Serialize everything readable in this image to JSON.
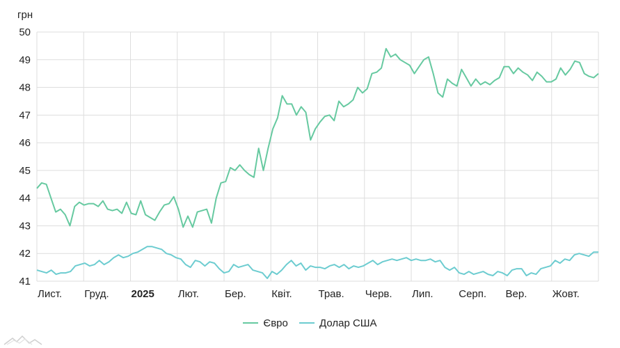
{
  "chart_data": {
    "type": "line",
    "unit_label": "грн",
    "ylim": [
      41,
      50
    ],
    "y_ticks": [
      41,
      42,
      43,
      44,
      45,
      46,
      47,
      48,
      49,
      50
    ],
    "x_labels": [
      {
        "label": "Лист.",
        "bold": false
      },
      {
        "label": "Груд.",
        "bold": false
      },
      {
        "label": "2025",
        "bold": true
      },
      {
        "label": "Лют.",
        "bold": false
      },
      {
        "label": "Бер.",
        "bold": false
      },
      {
        "label": "Квіт.",
        "bold": false
      },
      {
        "label": "Трав.",
        "bold": false
      },
      {
        "label": "Черв.",
        "bold": false
      },
      {
        "label": "Лип.",
        "bold": false
      },
      {
        "label": "Серп.",
        "bold": false
      },
      {
        "label": "Вер.",
        "bold": false
      },
      {
        "label": "Жовт.",
        "bold": false
      }
    ],
    "grid": true,
    "legend_position": "bottom-center",
    "series": [
      {
        "name": "Євро",
        "color": "#66c9a0",
        "values": [
          44.35,
          44.55,
          44.5,
          44.0,
          43.5,
          43.6,
          43.4,
          43.0,
          43.7,
          43.85,
          43.75,
          43.8,
          43.8,
          43.7,
          43.9,
          43.6,
          43.55,
          43.6,
          43.45,
          43.85,
          43.45,
          43.4,
          43.9,
          43.4,
          43.3,
          43.2,
          43.5,
          43.75,
          43.8,
          44.05,
          43.6,
          42.95,
          43.35,
          42.95,
          43.5,
          43.55,
          43.6,
          43.1,
          44.0,
          44.55,
          44.6,
          45.1,
          45.0,
          45.2,
          45.0,
          44.85,
          44.75,
          45.8,
          45.0,
          45.8,
          46.5,
          46.9,
          47.7,
          47.4,
          47.4,
          47.0,
          47.3,
          47.1,
          46.1,
          46.5,
          46.75,
          46.95,
          47.0,
          46.8,
          47.5,
          47.3,
          47.4,
          47.55,
          48.0,
          47.8,
          47.95,
          48.5,
          48.55,
          48.7,
          49.4,
          49.1,
          49.2,
          49.0,
          48.9,
          48.8,
          48.5,
          48.75,
          49.0,
          49.1,
          48.5,
          47.8,
          47.65,
          48.3,
          48.15,
          48.05,
          48.65,
          48.35,
          48.05,
          48.3,
          48.1,
          48.2,
          48.1,
          48.25,
          48.35,
          48.75,
          48.75,
          48.5,
          48.7,
          48.55,
          48.45,
          48.25,
          48.55,
          48.4,
          48.2,
          48.2,
          48.3,
          48.7,
          48.45,
          48.65,
          48.95,
          48.9,
          48.5,
          48.4,
          48.35,
          48.5
        ]
      },
      {
        "name": "Долар США",
        "color": "#6cccd0",
        "values": [
          41.4,
          41.35,
          41.3,
          41.4,
          41.25,
          41.3,
          41.3,
          41.35,
          41.55,
          41.6,
          41.65,
          41.55,
          41.6,
          41.75,
          41.6,
          41.7,
          41.85,
          41.95,
          41.85,
          41.9,
          42.0,
          42.05,
          42.15,
          42.25,
          42.25,
          42.2,
          42.15,
          42.0,
          41.95,
          41.85,
          41.8,
          41.6,
          41.5,
          41.75,
          41.7,
          41.55,
          41.7,
          41.65,
          41.45,
          41.3,
          41.35,
          41.6,
          41.5,
          41.55,
          41.6,
          41.4,
          41.35,
          41.3,
          41.1,
          41.35,
          41.25,
          41.4,
          41.6,
          41.75,
          41.55,
          41.65,
          41.4,
          41.55,
          41.5,
          41.5,
          41.45,
          41.55,
          41.6,
          41.5,
          41.6,
          41.45,
          41.55,
          41.5,
          41.55,
          41.65,
          41.75,
          41.6,
          41.7,
          41.75,
          41.8,
          41.75,
          41.8,
          41.85,
          41.75,
          41.8,
          41.75,
          41.75,
          41.8,
          41.7,
          41.75,
          41.5,
          41.4,
          41.5,
          41.3,
          41.25,
          41.35,
          41.25,
          41.3,
          41.35,
          41.25,
          41.2,
          41.35,
          41.3,
          41.2,
          41.4,
          41.45,
          41.45,
          41.2,
          41.3,
          41.25,
          41.45,
          41.5,
          41.55,
          41.75,
          41.65,
          41.8,
          41.75,
          41.95,
          42.0,
          41.95,
          41.9,
          42.05,
          42.05
        ]
      }
    ]
  }
}
